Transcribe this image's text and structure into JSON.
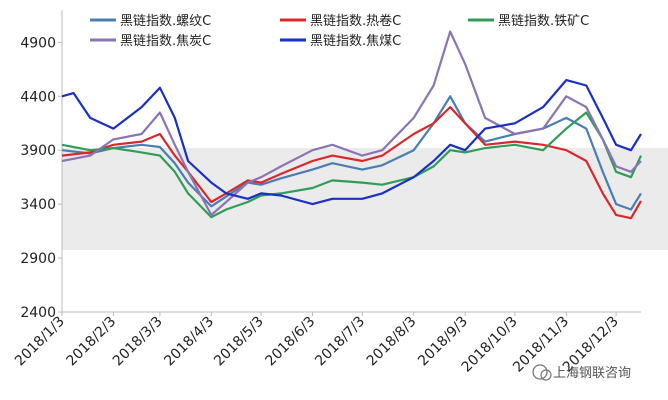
{
  "chart_data": {
    "type": "line",
    "ylim": [
      2400,
      5200
    ],
    "yticks": [
      2400,
      2900,
      3400,
      3900,
      4400,
      4900
    ],
    "xticks": [
      "2018/1/3",
      "2018/2/3",
      "2018/3/3",
      "2018/4/3",
      "2018/5/3",
      "2018/6/3",
      "2018/7/3",
      "2018/8/3",
      "2018/9/3",
      "2018/10/3",
      "2018/11/3",
      "2018/12/3"
    ],
    "grid": false,
    "legend_position": "top",
    "series": [
      {
        "name": "黑链指数.螺纹C",
        "color": "#4a7eb3",
        "points": [
          [
            "2018/1/3",
            3900
          ],
          [
            "2018/1/20",
            3870
          ],
          [
            "2018/2/3",
            3920
          ],
          [
            "2018/2/20",
            3950
          ],
          [
            "2018/3/3",
            3930
          ],
          [
            "2018/3/12",
            3780
          ],
          [
            "2018/3/20",
            3600
          ],
          [
            "2018/4/3",
            3380
          ],
          [
            "2018/4/12",
            3470
          ],
          [
            "2018/4/25",
            3600
          ],
          [
            "2018/5/3",
            3580
          ],
          [
            "2018/5/15",
            3640
          ],
          [
            "2018/6/3",
            3720
          ],
          [
            "2018/6/15",
            3780
          ],
          [
            "2018/7/3",
            3720
          ],
          [
            "2018/7/15",
            3760
          ],
          [
            "2018/8/3",
            3900
          ],
          [
            "2018/8/15",
            4150
          ],
          [
            "2018/8/25",
            4400
          ],
          [
            "2018/9/3",
            4150
          ],
          [
            "2018/9/15",
            3980
          ],
          [
            "2018/10/3",
            4050
          ],
          [
            "2018/10/20",
            4100
          ],
          [
            "2018/11/3",
            4200
          ],
          [
            "2018/11/15",
            4100
          ],
          [
            "2018/11/25",
            3700
          ],
          [
            "2018/12/3",
            3400
          ],
          [
            "2018/12/12",
            3350
          ],
          [
            "2018/12/18",
            3500
          ]
        ]
      },
      {
        "name": "黑链指数.热卷C",
        "color": "#d9282c",
        "points": [
          [
            "2018/1/3",
            3850
          ],
          [
            "2018/1/20",
            3880
          ],
          [
            "2018/2/3",
            3950
          ],
          [
            "2018/2/20",
            3980
          ],
          [
            "2018/3/3",
            4050
          ],
          [
            "2018/3/12",
            3850
          ],
          [
            "2018/3/20",
            3700
          ],
          [
            "2018/4/3",
            3420
          ],
          [
            "2018/4/12",
            3500
          ],
          [
            "2018/4/25",
            3620
          ],
          [
            "2018/5/3",
            3600
          ],
          [
            "2018/5/15",
            3680
          ],
          [
            "2018/6/3",
            3800
          ],
          [
            "2018/6/15",
            3850
          ],
          [
            "2018/7/3",
            3800
          ],
          [
            "2018/7/15",
            3850
          ],
          [
            "2018/8/3",
            4050
          ],
          [
            "2018/8/15",
            4150
          ],
          [
            "2018/8/25",
            4300
          ],
          [
            "2018/9/3",
            4150
          ],
          [
            "2018/9/15",
            3950
          ],
          [
            "2018/10/3",
            3980
          ],
          [
            "2018/10/20",
            3950
          ],
          [
            "2018/11/3",
            3900
          ],
          [
            "2018/11/15",
            3800
          ],
          [
            "2018/11/25",
            3500
          ],
          [
            "2018/12/3",
            3300
          ],
          [
            "2018/12/12",
            3270
          ],
          [
            "2018/12/18",
            3430
          ]
        ]
      },
      {
        "name": "黑链指数.铁矿C",
        "color": "#2e9e57",
        "points": [
          [
            "2018/1/3",
            3950
          ],
          [
            "2018/1/20",
            3900
          ],
          [
            "2018/2/3",
            3920
          ],
          [
            "2018/2/20",
            3880
          ],
          [
            "2018/3/3",
            3850
          ],
          [
            "2018/3/12",
            3700
          ],
          [
            "2018/3/20",
            3500
          ],
          [
            "2018/4/3",
            3280
          ],
          [
            "2018/4/12",
            3350
          ],
          [
            "2018/4/25",
            3420
          ],
          [
            "2018/5/3",
            3480
          ],
          [
            "2018/5/15",
            3500
          ],
          [
            "2018/6/3",
            3550
          ],
          [
            "2018/6/15",
            3620
          ],
          [
            "2018/7/3",
            3600
          ],
          [
            "2018/7/15",
            3580
          ],
          [
            "2018/8/3",
            3650
          ],
          [
            "2018/8/15",
            3750
          ],
          [
            "2018/8/25",
            3900
          ],
          [
            "2018/9/3",
            3880
          ],
          [
            "2018/9/15",
            3920
          ],
          [
            "2018/10/3",
            3950
          ],
          [
            "2018/10/20",
            3900
          ],
          [
            "2018/11/3",
            4100
          ],
          [
            "2018/11/15",
            4250
          ],
          [
            "2018/11/25",
            4000
          ],
          [
            "2018/12/3",
            3700
          ],
          [
            "2018/12/12",
            3650
          ],
          [
            "2018/12/18",
            3850
          ]
        ]
      },
      {
        "name": "黑链指数.焦炭C",
        "color": "#8a75b4",
        "points": [
          [
            "2018/1/3",
            3800
          ],
          [
            "2018/1/20",
            3850
          ],
          [
            "2018/2/3",
            4000
          ],
          [
            "2018/2/20",
            4050
          ],
          [
            "2018/3/3",
            4250
          ],
          [
            "2018/3/12",
            3950
          ],
          [
            "2018/3/20",
            3700
          ],
          [
            "2018/4/3",
            3300
          ],
          [
            "2018/4/12",
            3420
          ],
          [
            "2018/4/25",
            3600
          ],
          [
            "2018/5/3",
            3650
          ],
          [
            "2018/5/15",
            3750
          ],
          [
            "2018/6/3",
            3900
          ],
          [
            "2018/6/15",
            3950
          ],
          [
            "2018/7/3",
            3850
          ],
          [
            "2018/7/15",
            3900
          ],
          [
            "2018/8/3",
            4200
          ],
          [
            "2018/8/15",
            4500
          ],
          [
            "2018/8/25",
            5000
          ],
          [
            "2018/9/3",
            4700
          ],
          [
            "2018/9/15",
            4200
          ],
          [
            "2018/10/3",
            4050
          ],
          [
            "2018/10/20",
            4100
          ],
          [
            "2018/11/3",
            4400
          ],
          [
            "2018/11/15",
            4300
          ],
          [
            "2018/11/25",
            4000
          ],
          [
            "2018/12/3",
            3750
          ],
          [
            "2018/12/12",
            3700
          ],
          [
            "2018/12/18",
            3800
          ]
        ]
      },
      {
        "name": "黑链指数.焦煤C",
        "color": "#1a2fc4",
        "points": [
          [
            "2018/1/3",
            4400
          ],
          [
            "2018/1/10",
            4430
          ],
          [
            "2018/1/20",
            4200
          ],
          [
            "2018/2/3",
            4100
          ],
          [
            "2018/2/20",
            4300
          ],
          [
            "2018/3/3",
            4480
          ],
          [
            "2018/3/12",
            4200
          ],
          [
            "2018/3/20",
            3800
          ],
          [
            "2018/4/3",
            3600
          ],
          [
            "2018/4/12",
            3500
          ],
          [
            "2018/4/25",
            3450
          ],
          [
            "2018/5/3",
            3500
          ],
          [
            "2018/5/15",
            3480
          ],
          [
            "2018/6/3",
            3400
          ],
          [
            "2018/6/15",
            3450
          ],
          [
            "2018/7/3",
            3450
          ],
          [
            "2018/7/15",
            3500
          ],
          [
            "2018/8/3",
            3650
          ],
          [
            "2018/8/15",
            3800
          ],
          [
            "2018/8/25",
            3950
          ],
          [
            "2018/9/3",
            3900
          ],
          [
            "2018/9/15",
            4100
          ],
          [
            "2018/10/3",
            4150
          ],
          [
            "2018/10/20",
            4300
          ],
          [
            "2018/11/3",
            4550
          ],
          [
            "2018/11/15",
            4500
          ],
          [
            "2018/11/25",
            4200
          ],
          [
            "2018/12/3",
            3950
          ],
          [
            "2018/12/12",
            3900
          ],
          [
            "2018/12/18",
            4050
          ]
        ]
      }
    ]
  },
  "watermark": {
    "text": "上海钢联咨询",
    "icon": "wechat-icon"
  }
}
